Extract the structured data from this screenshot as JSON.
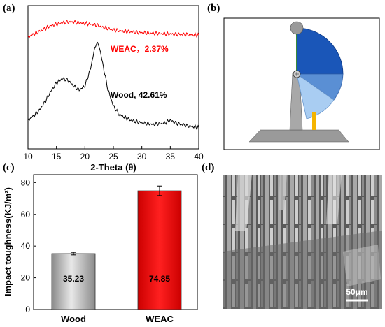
{
  "panels": {
    "a": "(a)",
    "b": "(b)",
    "c": "(c)",
    "d": "(d)"
  },
  "chart_data": [
    {
      "type": "line",
      "panel": "a",
      "xlabel": "2-Theta (θ)",
      "ylabel": "",
      "xlim": [
        10,
        40
      ],
      "xticks": [
        "10",
        "15",
        "20",
        "25",
        "30",
        "35",
        "40"
      ],
      "series": [
        {
          "name": "WEAC，2.37%",
          "color": "#ff0000",
          "x": [
            10,
            12,
            14,
            15,
            16,
            17,
            18,
            19,
            20,
            21,
            22,
            23,
            24,
            25,
            27,
            30,
            33,
            36,
            40
          ],
          "y": [
            0.78,
            0.82,
            0.86,
            0.87,
            0.88,
            0.885,
            0.885,
            0.88,
            0.875,
            0.87,
            0.865,
            0.85,
            0.84,
            0.83,
            0.82,
            0.81,
            0.805,
            0.8,
            0.795
          ]
        },
        {
          "name": "Wood, 42.61%",
          "color": "#000000",
          "x": [
            10,
            11,
            12,
            13,
            14,
            15,
            16,
            17,
            18,
            19,
            20,
            21,
            21.5,
            22,
            22.5,
            23,
            24,
            25,
            26,
            28,
            30,
            32,
            34,
            35,
            36,
            38,
            40
          ],
          "y": [
            0.2,
            0.23,
            0.27,
            0.33,
            0.4,
            0.46,
            0.49,
            0.48,
            0.44,
            0.41,
            0.44,
            0.56,
            0.66,
            0.74,
            0.72,
            0.62,
            0.42,
            0.3,
            0.24,
            0.2,
            0.18,
            0.17,
            0.18,
            0.2,
            0.18,
            0.16,
            0.15
          ]
        }
      ]
    },
    {
      "type": "bar",
      "panel": "c",
      "categories": [
        "Wood",
        "WEAC"
      ],
      "values": [
        35.23,
        74.85
      ],
      "errors": [
        0.8,
        3.0
      ],
      "labels": [
        "35.23",
        "74.85"
      ],
      "colors": [
        "#b0b0b0",
        "#ff0000"
      ],
      "xlabel": "",
      "ylabel": "Impact toughness(KJ/m²)",
      "ylim": [
        0,
        85
      ],
      "yticks": [
        0,
        20,
        40,
        60,
        80
      ]
    }
  ],
  "scale_bar": "50μm"
}
